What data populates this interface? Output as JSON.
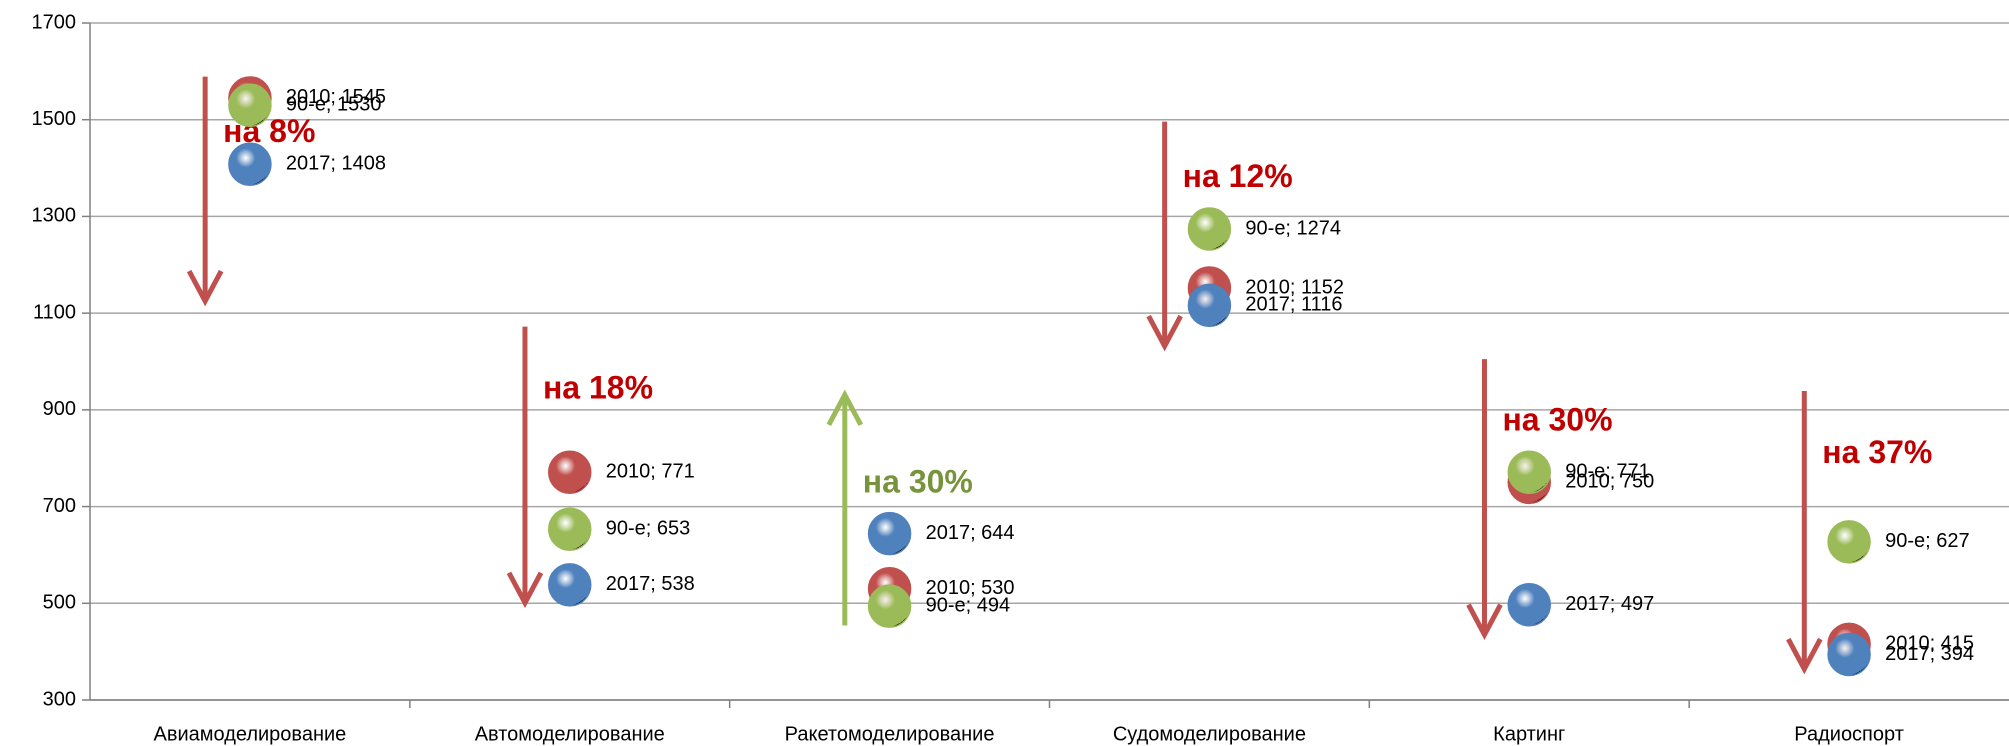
{
  "chart_data": {
    "type": "scatter",
    "categories": [
      "Авиамоделирование",
      "Автомоделирование",
      "Ракетомоделирование",
      "Судомоделирование",
      "Картинг",
      "Радиоспорт"
    ],
    "series": [
      {
        "name": "2010",
        "color": "#c0504d",
        "values": [
          1545,
          771,
          530,
          1152,
          750,
          415
        ],
        "value_labels": [
          "2010; 1545",
          "2010; 771",
          "2010; 530",
          "2010; 1152",
          "2010; 750",
          "2010; 415"
        ]
      },
      {
        "name": "90-е",
        "color": "#9bbb59",
        "values": [
          1530,
          653,
          494,
          1274,
          771,
          627
        ],
        "value_labels": [
          "90-е; 1530",
          "90-е; 653",
          "90-е; 494",
          "90-е; 1274",
          "90-е; 771",
          "90-е; 627"
        ]
      },
      {
        "name": "2017",
        "color": "#4f81bd",
        "values": [
          1408,
          538,
          644,
          1116,
          497,
          394
        ],
        "value_labels": [
          "2017; 1408",
          "2017; 538",
          "2017; 644",
          "2017; 1116",
          "2017; 497",
          "2017; 394"
        ]
      }
    ],
    "annotations": [
      {
        "text": "на 8%",
        "category": 0,
        "from": 1589,
        "to": 1125,
        "color": "#c00000",
        "arrow_color": "#c0504d"
      },
      {
        "text": "на 18%",
        "category": 1,
        "from": 1072,
        "to": 501,
        "color": "#c00000",
        "arrow_color": "#c0504d"
      },
      {
        "text": "на 30%",
        "category": 2,
        "from": 454,
        "to": 931,
        "color": "#77933c",
        "arrow_color": "#9bbb59"
      },
      {
        "text": "на 12%",
        "category": 3,
        "from": 1496,
        "to": 1032,
        "color": "#c00000",
        "arrow_color": "#c0504d"
      },
      {
        "text": "на 30%",
        "category": 4,
        "from": 1005,
        "to": 435,
        "color": "#c00000",
        "arrow_color": "#c0504d"
      },
      {
        "text": "на 37%",
        "category": 5,
        "from": 939,
        "to": 364,
        "color": "#c00000",
        "arrow_color": "#c0504d"
      }
    ],
    "ylim": [
      300,
      1700
    ],
    "yticks": [
      300,
      500,
      700,
      900,
      1100,
      1300,
      1500,
      1700
    ],
    "grid": true
  }
}
